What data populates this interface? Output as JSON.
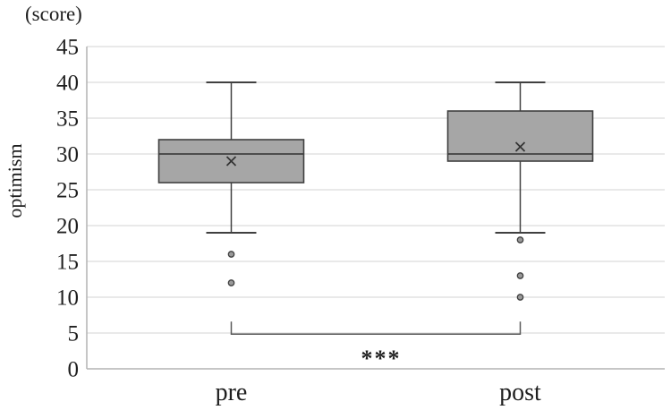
{
  "figure": {
    "unit_label": "(score)",
    "y_axis_title": "optimism"
  },
  "chart_data": {
    "type": "boxplot",
    "title": "",
    "xlabel": "",
    "ylabel": "optimism",
    "y_unit_label": "(score)",
    "categories": [
      "pre",
      "post"
    ],
    "y_axis": {
      "min": 0,
      "max": 45,
      "tick_step": 5,
      "tick_labels": [
        "0",
        "5",
        "10",
        "15",
        "20",
        "25",
        "30",
        "35",
        "40",
        "45"
      ]
    },
    "grid": true,
    "legend": false,
    "series": [
      {
        "category": "pre",
        "whisker_low": 19,
        "q1": 26,
        "median": 30,
        "q3": 32,
        "whisker_high": 40,
        "mean": 29,
        "outliers": [
          16,
          12
        ]
      },
      {
        "category": "post",
        "whisker_low": 19,
        "q1": 29,
        "median": 30,
        "q3": 36,
        "whisker_high": 40,
        "mean": 31,
        "outliers": [
          18,
          13,
          10
        ]
      }
    ],
    "significance": {
      "label": "***",
      "between": [
        "pre",
        "post"
      ],
      "bracket_y_value": 4.85
    },
    "style": {
      "box_fill": "#a6a6a6",
      "box_stroke": "#404040",
      "median_color": "#404040",
      "whisker_color": "#404040",
      "mean_marker_color": "#333333",
      "outlier_fill": "#999999",
      "outlier_stroke": "#404040",
      "grid_color": "#dcdcdc",
      "axis_color": "#b3b3b3",
      "bracket_color": "#595959",
      "text_color": "#1f1f1f",
      "background": "#ffffff"
    }
  }
}
